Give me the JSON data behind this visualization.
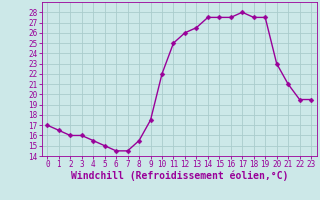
{
  "x": [
    0,
    1,
    2,
    3,
    4,
    5,
    6,
    7,
    8,
    9,
    10,
    11,
    12,
    13,
    14,
    15,
    16,
    17,
    18,
    19,
    20,
    21,
    22,
    23
  ],
  "y": [
    17,
    16.5,
    16,
    16,
    15.5,
    15,
    14.5,
    14.5,
    15.5,
    17.5,
    22,
    25,
    26,
    26.5,
    27.5,
    27.5,
    27.5,
    28,
    27.5,
    27.5,
    23,
    21,
    19.5,
    19.5
  ],
  "line_color": "#990099",
  "marker": "D",
  "marker_size": 2.5,
  "bg_color": "#cce8e8",
  "grid_color": "#aacccc",
  "xlabel": "Windchill (Refroidissement éolien,°C)",
  "xlabel_fontsize": 7,
  "ylim": [
    14,
    29
  ],
  "xlim": [
    -0.5,
    23.5
  ],
  "yticks": [
    14,
    15,
    16,
    17,
    18,
    19,
    20,
    21,
    22,
    23,
    24,
    25,
    26,
    27,
    28
  ],
  "xticks": [
    0,
    1,
    2,
    3,
    4,
    5,
    6,
    7,
    8,
    9,
    10,
    11,
    12,
    13,
    14,
    15,
    16,
    17,
    18,
    19,
    20,
    21,
    22,
    23
  ],
  "tick_fontsize": 5.5,
  "line_width": 1.0
}
